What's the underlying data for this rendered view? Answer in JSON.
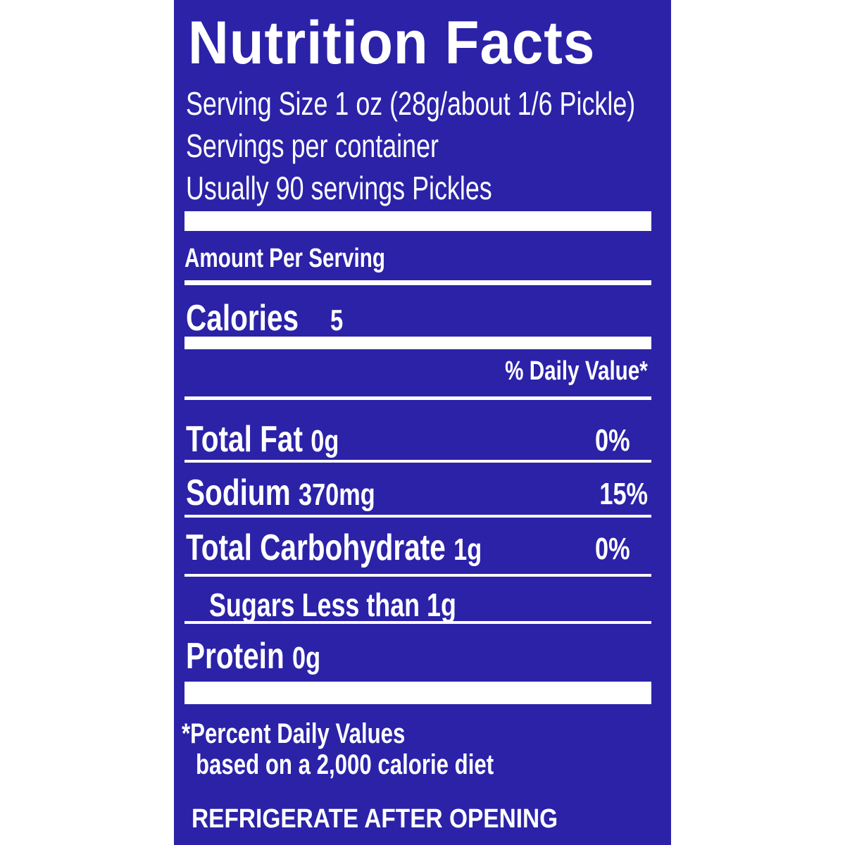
{
  "label": {
    "title": "Nutrition Facts",
    "serving_lines": [
      "Serving Size 1 oz (28g/about 1/6 Pickle)",
      "Servings per container",
      "Usually 90 servings Pickles"
    ],
    "amount_per_serving": "Amount Per Serving",
    "calories": {
      "name": "Calories",
      "value": "5"
    },
    "daily_value_header": "% Daily Value*",
    "nutrients": [
      {
        "name": "Total Fat",
        "amount": "0g",
        "dv": "0%"
      },
      {
        "name": "Sodium",
        "amount": "370mg",
        "dv": "15%"
      },
      {
        "name": "Total Carbohydrate",
        "amount": "1g",
        "dv": "0%"
      }
    ],
    "sugars": "Sugars Less than 1g",
    "protein": {
      "name": "Protein",
      "amount": "0g"
    },
    "footnote": [
      "*Percent Daily Values",
      "based on a 2,000 calorie diet"
    ],
    "storage": "REFRIGERATE AFTER OPENING"
  }
}
